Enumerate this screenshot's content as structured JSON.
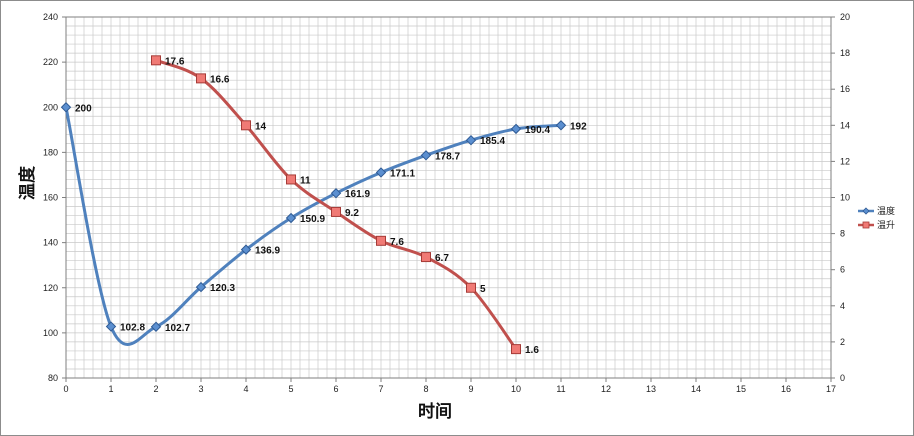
{
  "chart_data": {
    "type": "line",
    "xlabel": "时间",
    "ylabel": "温度",
    "x_ticks": [
      "0",
      "1",
      "2",
      "3",
      "4",
      "5",
      "6",
      "7",
      "8",
      "9",
      "10",
      "11",
      "12",
      "13",
      "14",
      "15",
      "16",
      "17"
    ],
    "y_left_ticks": [
      "80",
      "100",
      "120",
      "140",
      "160",
      "180",
      "200",
      "220",
      "240"
    ],
    "y_right_ticks": [
      "0",
      "2",
      "4",
      "6",
      "8",
      "10",
      "12",
      "14",
      "16",
      "18",
      "20"
    ],
    "xlim": [
      0,
      17
    ],
    "ylim_left": [
      80,
      240
    ],
    "ylim_right": [
      0,
      20
    ],
    "grid": true,
    "legend_position": "right",
    "series": [
      {
        "name": "温度",
        "axis": "left",
        "color": "#4f81bd",
        "marker": "diamond",
        "x": [
          0,
          1,
          2,
          3,
          4,
          5,
          6,
          7,
          8,
          9,
          10,
          11
        ],
        "values": [
          200,
          102.8,
          102.7,
          120.3,
          136.9,
          150.9,
          161.9,
          171.1,
          178.7,
          185.4,
          190.4,
          192
        ],
        "labels": [
          "200",
          "102.8",
          "102.7",
          "120.3",
          "136.9",
          "150.9",
          "161.9",
          "171.1",
          "178.7",
          "185.4",
          "190.4",
          "192"
        ]
      },
      {
        "name": "温升",
        "axis": "right",
        "color": "#c0504d",
        "marker": "square",
        "x": [
          2,
          3,
          4,
          5,
          6,
          7,
          8,
          9,
          10
        ],
        "values": [
          17.6,
          16.6,
          14,
          11,
          9.2,
          7.6,
          6.7,
          5,
          1.6
        ],
        "labels": [
          "17.6",
          "16.6",
          "14",
          "11",
          "9.2",
          "7.6",
          "6.7",
          "5",
          "1.6"
        ]
      }
    ]
  }
}
